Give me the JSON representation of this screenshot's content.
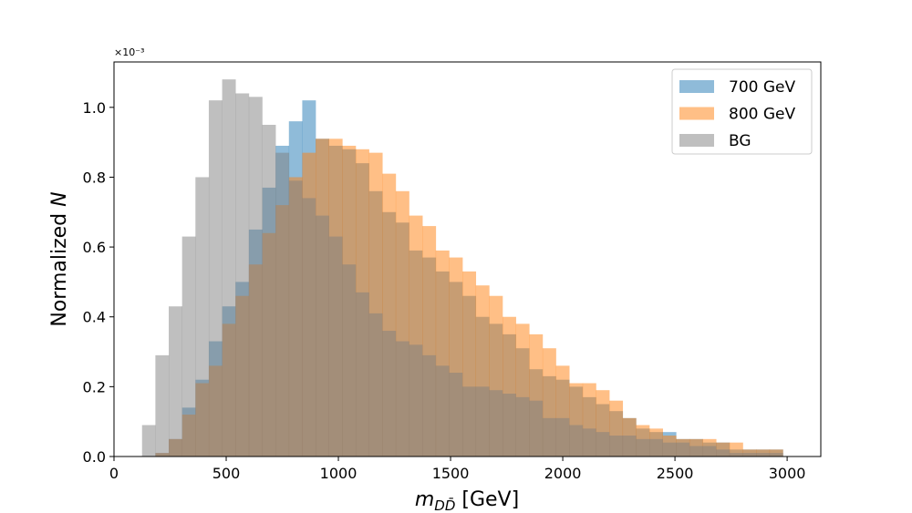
{
  "chart_data": {
    "type": "bar",
    "subtype": "step-histogram-overlay",
    "xlabel": "m_{DD̄} [GeV]",
    "ylabel": "Normalized N",
    "y_offset_text": "×10⁻³",
    "xlim": [
      0,
      3150
    ],
    "ylim": [
      0,
      1.13
    ],
    "xticks": [
      0,
      500,
      1000,
      1500,
      2000,
      2500,
      3000
    ],
    "yticks": [
      0.0,
      0.2,
      0.4,
      0.6,
      0.8,
      1.0
    ],
    "xtick_labels": [
      "0",
      "500",
      "1000",
      "1500",
      "2000",
      "2500",
      "3000"
    ],
    "ytick_labels": [
      "0.0",
      "0.2",
      "0.4",
      "0.6",
      "0.8",
      "1.0"
    ],
    "grid": false,
    "legend_position": "top-right",
    "bin_edges_start": 125,
    "bin_width": 59.5,
    "series": [
      {
        "name": "700 GeV",
        "color": "#1f77b4",
        "alpha": 0.5,
        "values": [
          0.0,
          0.01,
          0.05,
          0.14,
          0.22,
          0.33,
          0.43,
          0.5,
          0.65,
          0.77,
          0.89,
          0.96,
          1.02,
          0.91,
          0.89,
          0.88,
          0.84,
          0.76,
          0.7,
          0.67,
          0.59,
          0.57,
          0.53,
          0.5,
          0.46,
          0.4,
          0.38,
          0.35,
          0.31,
          0.25,
          0.23,
          0.22,
          0.2,
          0.17,
          0.15,
          0.13,
          0.11,
          0.08,
          0.07,
          0.07,
          0.05,
          0.05,
          0.04,
          0.04,
          0.02,
          0.02,
          0.02,
          0.02
        ]
      },
      {
        "name": "800 GeV",
        "color": "#ff7f0e",
        "alpha": 0.5,
        "values": [
          0.0,
          0.01,
          0.05,
          0.12,
          0.21,
          0.26,
          0.38,
          0.46,
          0.55,
          0.64,
          0.72,
          0.8,
          0.87,
          0.91,
          0.91,
          0.89,
          0.88,
          0.87,
          0.81,
          0.76,
          0.69,
          0.66,
          0.59,
          0.57,
          0.53,
          0.49,
          0.46,
          0.4,
          0.38,
          0.35,
          0.31,
          0.26,
          0.21,
          0.21,
          0.19,
          0.16,
          0.11,
          0.09,
          0.08,
          0.06,
          0.05,
          0.05,
          0.05,
          0.04,
          0.04,
          0.02,
          0.02,
          0.02
        ]
      },
      {
        "name": "BG",
        "color": "#7f7f7f",
        "alpha": 0.5,
        "values": [
          0.09,
          0.29,
          0.43,
          0.63,
          0.8,
          1.02,
          1.08,
          1.04,
          1.03,
          0.95,
          0.87,
          0.79,
          0.74,
          0.69,
          0.63,
          0.55,
          0.47,
          0.41,
          0.36,
          0.33,
          0.32,
          0.29,
          0.26,
          0.24,
          0.2,
          0.2,
          0.19,
          0.18,
          0.17,
          0.16,
          0.11,
          0.11,
          0.09,
          0.08,
          0.07,
          0.06,
          0.06,
          0.05,
          0.05,
          0.04,
          0.04,
          0.03,
          0.03,
          0.02,
          0.01,
          0.01,
          0.01,
          0.01
        ]
      }
    ]
  }
}
